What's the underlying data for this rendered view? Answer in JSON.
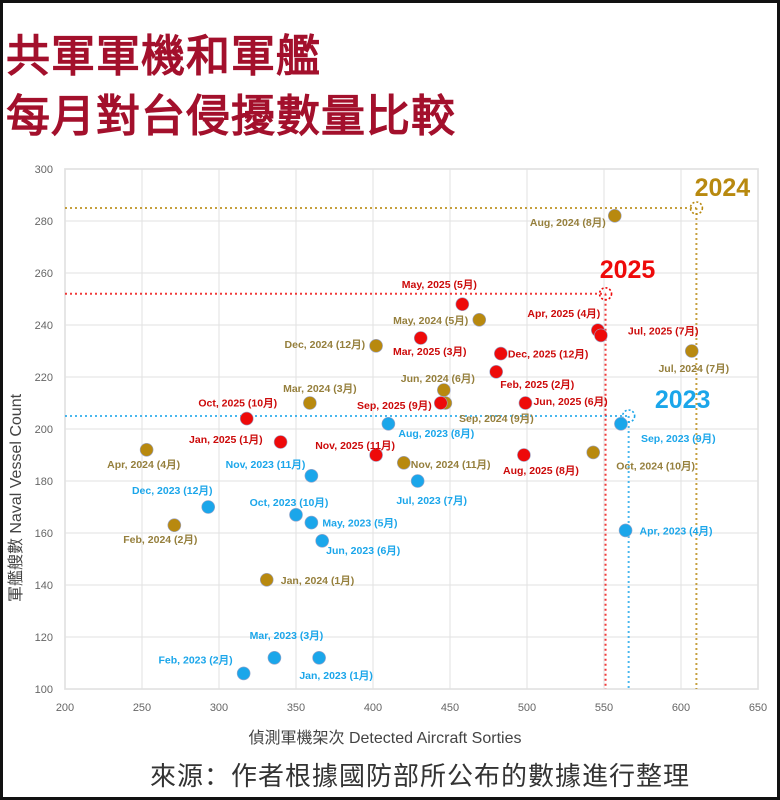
{
  "title": {
    "line1": "共軍軍機和軍艦",
    "line2": "每月對台侵擾數量比較"
  },
  "source": "來源：作者根據國防部所公布的數據進行整理",
  "chart_data": {
    "type": "scatter",
    "xlabel": "偵測軍機架次  Detected Aircraft Sorties",
    "ylabel": "軍艦艘數  Naval Vessel Count",
    "xlim": [
      200,
      650
    ],
    "ylim": [
      100,
      300
    ],
    "xticks": [
      200,
      250,
      300,
      350,
      400,
      450,
      500,
      550,
      600,
      650
    ],
    "yticks": [
      100,
      120,
      140,
      160,
      180,
      200,
      220,
      240,
      260,
      280,
      300
    ],
    "grid": true,
    "colors": {
      "2023": "#1ba6ea",
      "2024": "#b8890f",
      "2025": "#ee0a0a"
    },
    "label_colors": {
      "2023": "#1ba6ea",
      "2024": "#957f3c",
      "2025": "#cc0a0a"
    },
    "series": [
      {
        "name": "2023",
        "points": [
          {
            "label": "Jan, 2023 (1月)",
            "x": 365,
            "y": 112
          },
          {
            "label": "Feb, 2023 (2月)",
            "x": 316,
            "y": 106
          },
          {
            "label": "Mar, 2023 (3月)",
            "x": 336,
            "y": 112
          },
          {
            "label": "Apr, 2023 (4月)",
            "x": 564,
            "y": 161
          },
          {
            "label": "May, 2023 (5月)",
            "x": 360,
            "y": 164
          },
          {
            "label": "Jun, 2023 (6月)",
            "x": 367,
            "y": 157
          },
          {
            "label": "Jul, 2023 (7月)",
            "x": 429,
            "y": 180
          },
          {
            "label": "Aug, 2023 (8月)",
            "x": 410,
            "y": 202
          },
          {
            "label": "Sep, 2023 (9月)",
            "x": 561,
            "y": 202
          },
          {
            "label": "Oct, 2023 (10月)",
            "x": 350,
            "y": 167
          },
          {
            "label": "Nov, 2023 (11月)",
            "x": 360,
            "y": 182
          },
          {
            "label": "Dec, 2023 (12月)",
            "x": 293,
            "y": 170
          }
        ]
      },
      {
        "name": "2024",
        "points": [
          {
            "label": "Jan, 2024 (1月)",
            "x": 331,
            "y": 142
          },
          {
            "label": "Feb, 2024 (2月)",
            "x": 271,
            "y": 163
          },
          {
            "label": "Mar, 2024 (3月)",
            "x": 359,
            "y": 210
          },
          {
            "label": "Apr, 2024 (4月)",
            "x": 253,
            "y": 192
          },
          {
            "label": "May, 2024 (5月)",
            "x": 469,
            "y": 242
          },
          {
            "label": "Jun, 2024 (6月)",
            "x": 446,
            "y": 215
          },
          {
            "label": "Jul, 2024 (7月)",
            "x": 607,
            "y": 230
          },
          {
            "label": "Aug, 2024 (8月)",
            "x": 557,
            "y": 282
          },
          {
            "label": "Sep, 2024 (9月)",
            "x": 447,
            "y": 210
          },
          {
            "label": "Oct, 2024 (10月)",
            "x": 543,
            "y": 191
          },
          {
            "label": "Nov, 2024 (11月)",
            "x": 420,
            "y": 187
          },
          {
            "label": "Dec, 2024 (12月)",
            "x": 402,
            "y": 232
          }
        ]
      },
      {
        "name": "2025",
        "points": [
          {
            "label": "Jan, 2025 (1月)",
            "x": 340,
            "y": 195
          },
          {
            "label": "Feb, 2025 (2月)",
            "x": 480,
            "y": 222
          },
          {
            "label": "Mar, 2025 (3月)",
            "x": 431,
            "y": 235
          },
          {
            "label": "Apr, 2025 (4月)",
            "x": 546,
            "y": 238
          },
          {
            "label": "May, 2025 (5月)",
            "x": 458,
            "y": 248
          },
          {
            "label": "Jun, 2025 (6月)",
            "x": 499,
            "y": 210
          },
          {
            "label": "Jul, 2025 (7月)",
            "x": 548,
            "y": 236
          },
          {
            "label": "Aug, 2025 (8月)",
            "x": 498,
            "y": 190
          },
          {
            "label": "Sep, 2025 (9月)",
            "x": 444,
            "y": 210
          },
          {
            "label": "Oct, 2025 (10月)",
            "x": 318,
            "y": 204
          },
          {
            "label": "Nov, 2025 (11月)",
            "x": 402,
            "y": 190
          },
          {
            "label": "Dec, 2025 (12月)",
            "x": 483,
            "y": 229
          }
        ]
      }
    ],
    "averages": [
      {
        "label": "2023",
        "x": 566,
        "y": 205
      },
      {
        "label": "2024",
        "x": 610,
        "y": 285
      },
      {
        "label": "2025",
        "x": 551,
        "y": 252
      }
    ]
  }
}
